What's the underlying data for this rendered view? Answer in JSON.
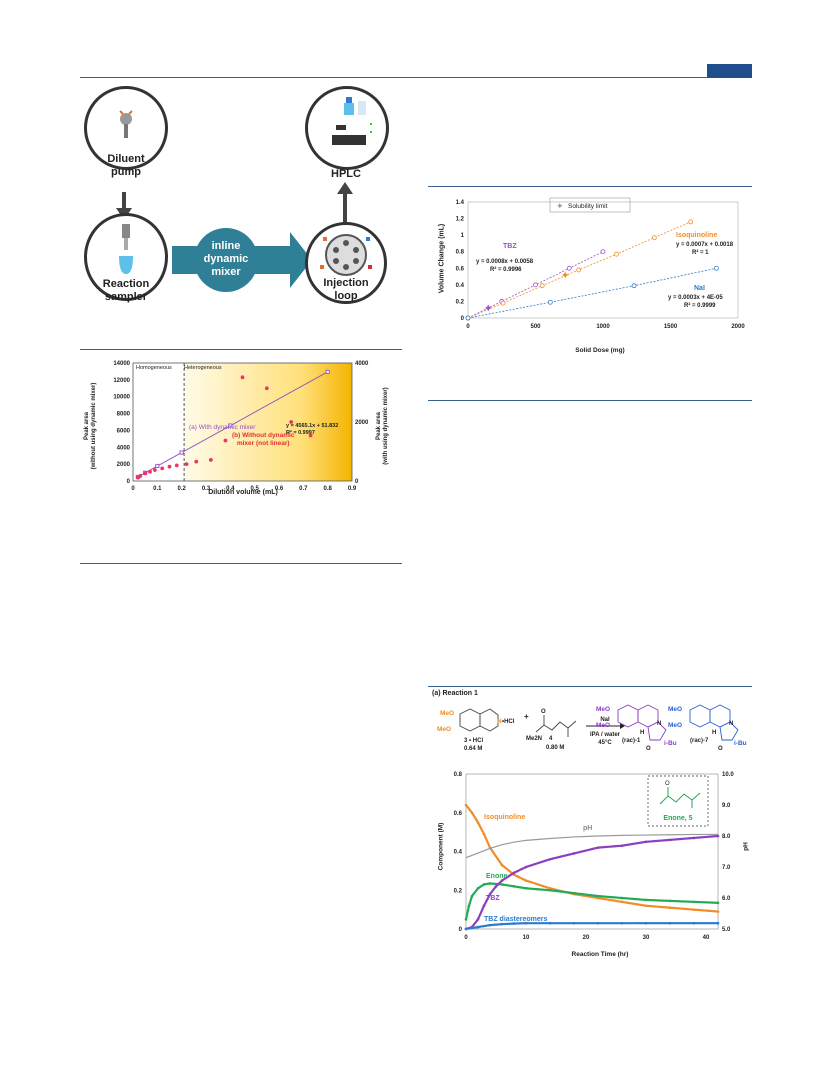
{
  "flow": {
    "node_diluent": "Diluent\npump",
    "node_sampler": "Reaction\nsampler",
    "mixer_label": "inline\ndynamic\nmixer",
    "node_loop": "Injection\nloop",
    "node_hplc": "HPLC"
  },
  "chart1": {
    "xlabel": "Dilution volume (mL)",
    "ylabel_left": "Peak area\n(without using dynamic mixer)",
    "ylabel_right": "Peak area\n(with using dynamic mixer)",
    "zone_left": "Homogeneous",
    "zone_right": "Heterogeneous",
    "series_a_label": "(a) With dynamic mixer",
    "series_b_label": "(b) Without  dynamic\nmixer (not linear)",
    "equation": "y = 4565.1x + 51.832",
    "r2": "R² = 0.9997",
    "colors": {
      "a": "#9b4dca",
      "b": "#ee3366"
    }
  },
  "chart2": {
    "legend": "Solubility limit",
    "xlabel": "Solid Dose (mg)",
    "ylabel": "Volume Change (mL)",
    "labels": {
      "tbz": "TBZ",
      "tbz_eq": "y = 0.0008x + 0.0058",
      "tbz_r2": "R² = 0.9996",
      "iso": "Isoquinoline",
      "iso_eq": "y = 0.0007x + 0.0018",
      "iso_r2": "R² = 1",
      "nai": "NaI",
      "nai_eq": "y = 0.0003x + 4E-05",
      "nai_r2": "R² = 0.9999"
    },
    "colors": {
      "tbz": "#9b4dca",
      "iso": "#f28c28",
      "nai": "#2b7bd0"
    }
  },
  "chart3": {
    "panel": "(a) Reaction 1",
    "scheme": {
      "reagent1": "3 • HCl",
      "conc1": "0.64 M",
      "reagent2": "Me2N",
      "num2": "4",
      "conc2": "0.80 M",
      "cond1": "NaI",
      "cond2": "IPA / water",
      "cond3": "45°C",
      "prod1": "(rac)-1",
      "prod2": "(rac)-7",
      "meo": "MeO",
      "ibu": "i-Bu",
      "hcl": "•HCl",
      "n": "N",
      "plus": "+",
      "h": "H",
      "o": "O"
    },
    "inset": "Enone, 5",
    "xlabel": "Reaction Time (hr)",
    "ylabel_left": "Component (M)",
    "ylabel_right": "pH",
    "series_labels": {
      "iso": "Isoquinoline",
      "ph": "pH",
      "enone": "Enone",
      "tbz": "TBZ",
      "dia": "TBZ diastereomers"
    },
    "colors": {
      "iso": "#f28c28",
      "ph": "#999999",
      "enone": "#22aa55",
      "tbz": "#8a3fc0",
      "dia": "#2b7bd0"
    }
  },
  "chart_data": [
    {
      "type": "scatter",
      "xlabel": "Dilution volume (mL)",
      "ylabel": "Peak area (without using dynamic mixer)",
      "y2label": "Peak area (with using dynamic mixer)",
      "xlim": [
        0,
        0.9
      ],
      "ylim": [
        0,
        14000
      ],
      "y2lim": [
        0,
        4000
      ],
      "xticks": [
        "0",
        "0.1",
        "0.2",
        "0.3",
        "0.4",
        "0.5",
        "0.6",
        "0.7",
        "0.8",
        "0.9"
      ],
      "yticks": [
        "0",
        "2000",
        "4000",
        "6000",
        "8000",
        "10000",
        "12000",
        "14000"
      ],
      "y2ticks": [
        "0",
        "2000",
        "4000"
      ],
      "series": [
        {
          "name": "(a) With dynamic mixer",
          "axis": "right",
          "x": [
            0.02,
            0.05,
            0.1,
            0.2,
            0.4,
            0.8
          ],
          "y": [
            140,
            280,
            510,
            965,
            1880,
            3700
          ]
        },
        {
          "name": "(b) Without  dynamic mixer (not linear)",
          "axis": "left",
          "x": [
            0.02,
            0.03,
            0.05,
            0.07,
            0.09,
            0.12,
            0.15,
            0.18,
            0.22,
            0.26,
            0.32,
            0.38,
            0.45,
            0.55,
            0.65,
            0.73
          ],
          "y": [
            400,
            600,
            900,
            1100,
            1300,
            1500,
            1700,
            1850,
            2000,
            2300,
            2500,
            4800,
            12300,
            11000,
            7000,
            5400
          ]
        }
      ]
    },
    {
      "type": "line",
      "xlabel": "Solid Dose (mg)",
      "ylabel": "Volume Change (mL)",
      "xlim": [
        0,
        2000
      ],
      "ylim": [
        0,
        1.4
      ],
      "xticks": [
        "0",
        "500",
        "1000",
        "1500",
        "2000"
      ],
      "yticks": [
        "0",
        "0.2",
        "0.4",
        "0.6",
        "0.8",
        "1",
        "1.2",
        "1.4"
      ],
      "series": [
        {
          "name": "TBZ",
          "x": [
            0,
            250,
            500,
            750,
            1000
          ],
          "y": [
            0,
            0.2,
            0.4,
            0.6,
            0.8
          ]
        },
        {
          "name": "Isoquinoline",
          "x": [
            0,
            260,
            550,
            820,
            1100,
            1380,
            1650
          ],
          "y": [
            0,
            0.18,
            0.39,
            0.58,
            0.77,
            0.97,
            1.16
          ]
        },
        {
          "name": "NaI",
          "x": [
            0,
            610,
            1230,
            1840
          ],
          "y": [
            0,
            0.19,
            0.39,
            0.6
          ]
        }
      ],
      "solubility_limit": [
        {
          "x": 150,
          "y": 0.12
        },
        {
          "x": 720,
          "y": 0.52
        }
      ]
    },
    {
      "type": "scatter",
      "xlabel": "Reaction Time (hr)",
      "ylabel": "Component (M)",
      "y2label": "pH",
      "xlim": [
        0,
        42
      ],
      "ylim": [
        0,
        0.8
      ],
      "y2lim": [
        5.0,
        10.0
      ],
      "xticks": [
        "0",
        "10",
        "20",
        "30",
        "40"
      ],
      "yticks": [
        "0",
        "0.2",
        "0.4",
        "0.6",
        "0.8"
      ],
      "y2ticks": [
        "5.0",
        "6.0",
        "7.0",
        "8.0",
        "9.0",
        "10.0"
      ],
      "series": [
        {
          "name": "Isoquinoline",
          "x": [
            0,
            1,
            2,
            3,
            4,
            6,
            8,
            10,
            14,
            18,
            22,
            26,
            30,
            34,
            38,
            42
          ],
          "y": [
            0.64,
            0.6,
            0.55,
            0.49,
            0.42,
            0.33,
            0.28,
            0.25,
            0.21,
            0.18,
            0.16,
            0.14,
            0.12,
            0.11,
            0.1,
            0.09
          ]
        },
        {
          "name": "pH",
          "axis": "right",
          "x": [
            0,
            2,
            4,
            6,
            8,
            10,
            14,
            18,
            22,
            26,
            30,
            34,
            38,
            42
          ],
          "y": [
            7.3,
            7.45,
            7.6,
            7.72,
            7.8,
            7.86,
            7.92,
            7.97,
            8.0,
            8.02,
            8.03,
            8.04,
            8.05,
            8.05
          ]
        },
        {
          "name": "Enone",
          "x": [
            0,
            0.5,
            1,
            2,
            3,
            4,
            6,
            8,
            10,
            14,
            18,
            22,
            26,
            30,
            34,
            38,
            42
          ],
          "y": [
            0.05,
            0.12,
            0.17,
            0.21,
            0.23,
            0.235,
            0.23,
            0.22,
            0.21,
            0.2,
            0.185,
            0.17,
            0.16,
            0.15,
            0.145,
            0.14,
            0.135
          ]
        },
        {
          "name": "TBZ",
          "x": [
            0,
            1,
            2,
            3,
            4,
            5,
            6,
            8,
            10,
            14,
            18,
            22,
            26,
            30,
            34,
            38,
            42
          ],
          "y": [
            0,
            0.01,
            0.05,
            0.12,
            0.18,
            0.22,
            0.25,
            0.29,
            0.32,
            0.36,
            0.39,
            0.42,
            0.43,
            0.45,
            0.46,
            0.47,
            0.48
          ]
        },
        {
          "name": "TBZ diastereomers",
          "x": [
            0,
            2,
            4,
            6,
            8,
            10,
            14,
            18,
            22,
            26,
            30,
            34,
            38,
            42
          ],
          "y": [
            0,
            0.01,
            0.02,
            0.025,
            0.028,
            0.03,
            0.03,
            0.03,
            0.03,
            0.03,
            0.03,
            0.03,
            0.03,
            0.03
          ]
        }
      ]
    }
  ]
}
